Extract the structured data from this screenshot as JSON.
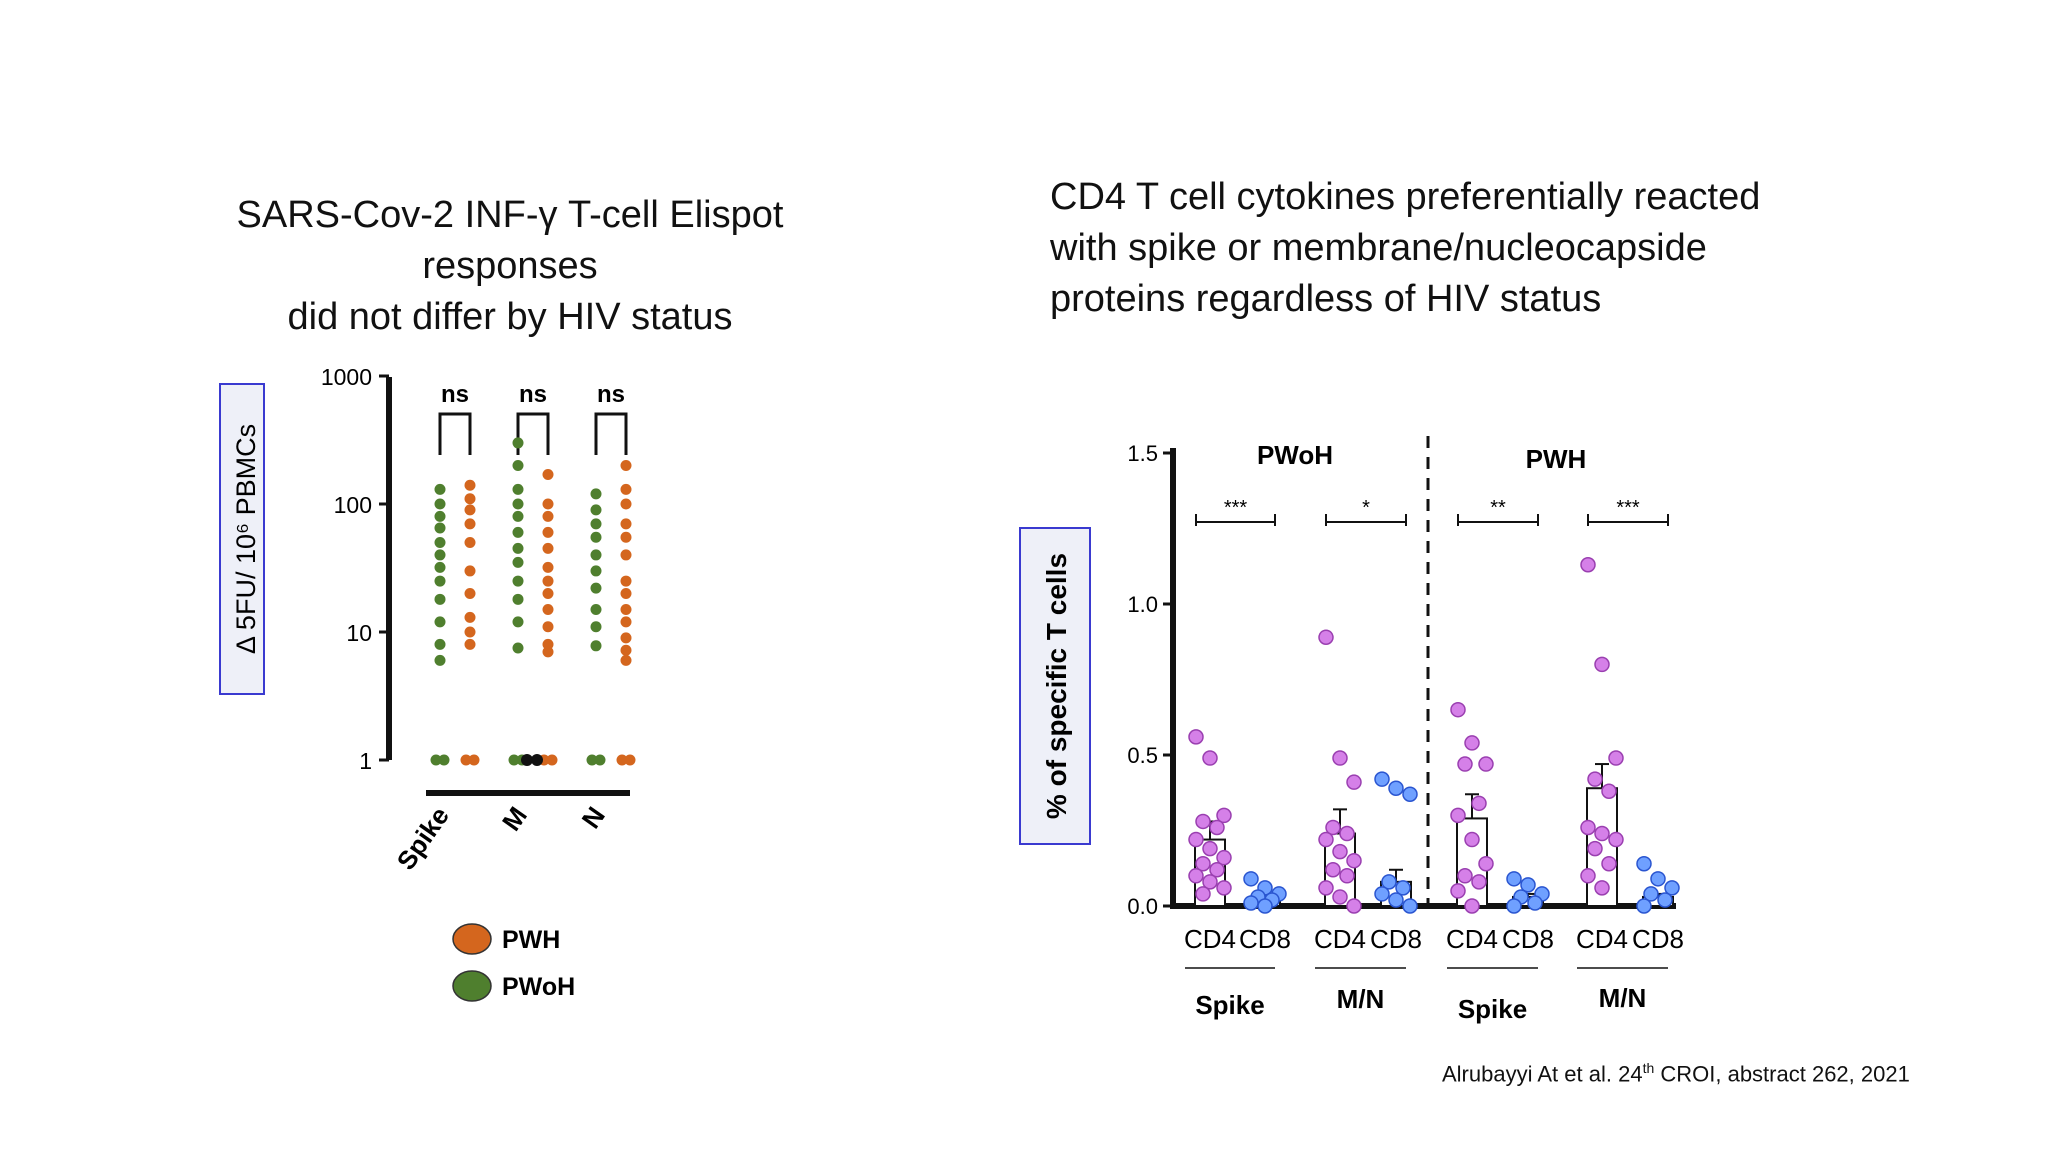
{
  "left_title": [
    "SARS-Cov-2  INF-γ T-cell Elispot responses",
    "did not differ by HIV status"
  ],
  "right_title": [
    "CD4 T cell cytokines preferentially reacted",
    "with spike or membrane/nucleocapside",
    "proteins regardless of HIV status"
  ],
  "citation": {
    "text": "Alrubayyi At et al. 24",
    "sup": "th",
    "rest": " CROI, abstract 262,  2021"
  },
  "colors": {
    "pwh": "#d4661e",
    "pwoh": "#4f7f2e",
    "black": "#111111",
    "cd4": "#d580e8",
    "cd8": "#6fa0ff",
    "cd4_stroke": "#9a3fb0",
    "cd8_stroke": "#2a55d0"
  },
  "chart_data": [
    {
      "type": "scatter",
      "yscale": "log",
      "ylim": [
        1,
        1000
      ],
      "yticks": [
        "1000",
        "100",
        "10",
        "1"
      ],
      "ytick_values": [
        1000,
        100,
        10,
        1
      ],
      "ylabel": "Δ 5FU/ 10⁶ PBMCs",
      "categories": [
        "Spike",
        "M",
        "N"
      ],
      "significance": [
        "ns",
        "ns",
        "ns"
      ],
      "legend": [
        {
          "name": "PWH",
          "color": "#d4661e"
        },
        {
          "name": "PWoH",
          "color": "#4f7f2e"
        }
      ],
      "series": [
        {
          "name": "PWoH",
          "color": "#4f7f2e",
          "values": [
            [
              130,
              100,
              80,
              65,
              50,
              40,
              32,
              25,
              18,
              12,
              8,
              6,
              1
            ],
            [
              300,
              200,
              130,
              100,
              80,
              60,
              45,
              35,
              25,
              18,
              12,
              7.5,
              1
            ],
            [
              120,
              90,
              70,
              55,
              40,
              30,
              22,
              15,
              11,
              7.8,
              1
            ]
          ]
        },
        {
          "name": "PWH",
          "color": "#d4661e",
          "values": [
            [
              140,
              110,
              90,
              70,
              50,
              30,
              20,
              13,
              10,
              8,
              1
            ],
            [
              170,
              100,
              80,
              60,
              45,
              32,
              25,
              20,
              15,
              11,
              8,
              7,
              1
            ],
            [
              200,
              130,
              100,
              70,
              55,
              40,
              25,
              20,
              15,
              12,
              9,
              7.2,
              6,
              1
            ]
          ]
        },
        {
          "name": "black",
          "color": "#111111",
          "values": [
            [],
            [
              1
            ],
            []
          ]
        }
      ]
    },
    {
      "type": "bar",
      "ylim": [
        0,
        1.5
      ],
      "yticks": [
        "1.5",
        "1.0",
        "0.5",
        "0.0"
      ],
      "ytick_values": [
        1.5,
        1.0,
        0.5,
        0.0
      ],
      "ylabel": "% of specific T cells",
      "groups": [
        "PWoH",
        "PWH"
      ],
      "categories": [
        "CD4",
        "CD8",
        "CD4",
        "CD8",
        "CD4",
        "CD8",
        "CD4",
        "CD8"
      ],
      "antigens": [
        "Spike",
        "M/N",
        "Spike",
        "M/N"
      ],
      "significance": [
        "***",
        "*",
        "**",
        "***"
      ],
      "bars": [
        {
          "mean": 0.22,
          "sem": 0.06,
          "points": [
            0.56,
            0.49,
            0.3,
            0.28,
            0.26,
            0.22,
            0.19,
            0.16,
            0.14,
            0.12,
            0.1,
            0.08,
            0.06,
            0.04
          ]
        },
        {
          "mean": 0.03,
          "sem": 0.01,
          "points": [
            0.09,
            0.06,
            0.04,
            0.03,
            0.02,
            0.01,
            0.0
          ]
        },
        {
          "mean": 0.24,
          "sem": 0.08,
          "points": [
            0.89,
            0.49,
            0.41,
            0.26,
            0.24,
            0.22,
            0.18,
            0.15,
            0.12,
            0.1,
            0.06,
            0.03,
            0.0
          ]
        },
        {
          "mean": 0.08,
          "sem": 0.04,
          "points": [
            0.42,
            0.39,
            0.37,
            0.08,
            0.06,
            0.04,
            0.02,
            0.0
          ]
        },
        {
          "mean": 0.29,
          "sem": 0.08,
          "points": [
            0.65,
            0.54,
            0.47,
            0.47,
            0.34,
            0.3,
            0.22,
            0.14,
            0.1,
            0.08,
            0.05,
            0.0
          ]
        },
        {
          "mean": 0.03,
          "sem": 0.01,
          "points": [
            0.09,
            0.07,
            0.04,
            0.03,
            0.01,
            0.0
          ]
        },
        {
          "mean": 0.39,
          "sem": 0.08,
          "points": [
            1.13,
            0.8,
            0.49,
            0.42,
            0.38,
            0.26,
            0.24,
            0.22,
            0.19,
            0.14,
            0.1,
            0.06
          ]
        },
        {
          "mean": 0.03,
          "sem": 0.01,
          "points": [
            0.14,
            0.09,
            0.06,
            0.04,
            0.02,
            0.0
          ]
        }
      ]
    }
  ]
}
